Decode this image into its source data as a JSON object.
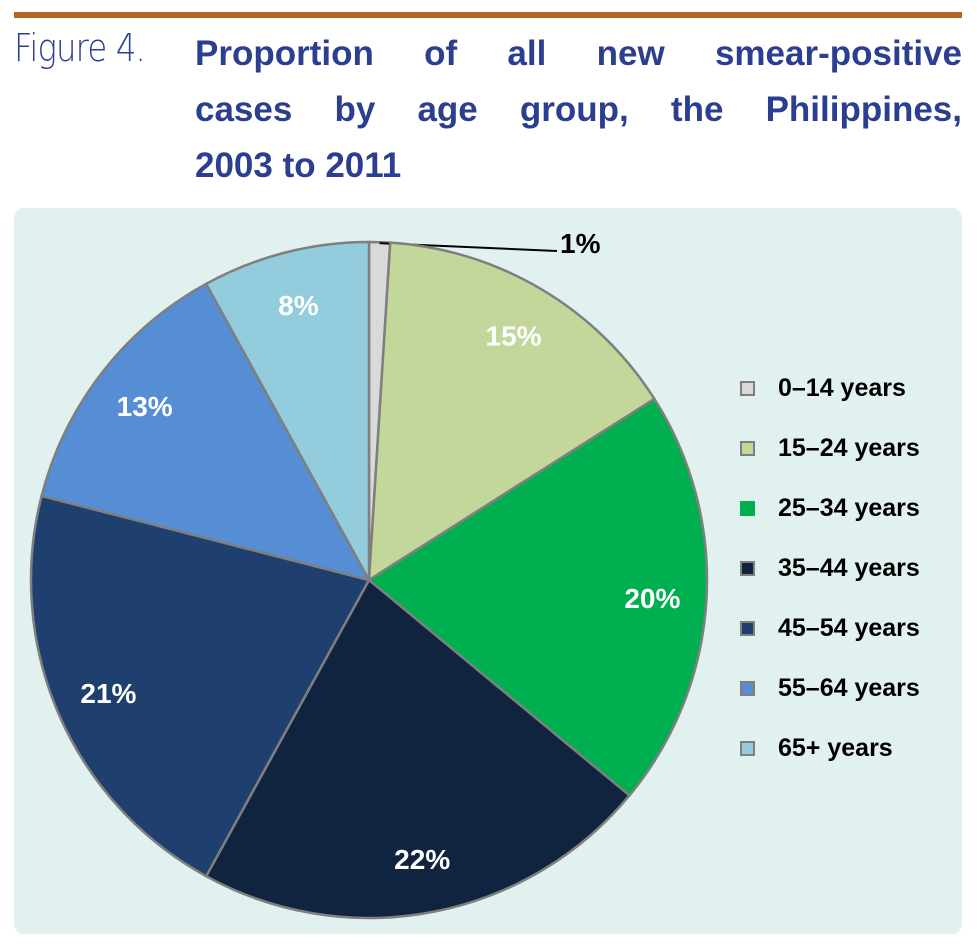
{
  "figure_label": "Figure 4.",
  "title_lines": [
    "Proportion of all new smear-positive",
    "cases by age group, the Philippines,",
    "2003 to 2011"
  ],
  "chart_data": {
    "type": "pie",
    "title": "Proportion of all new smear-positive cases by age group, the Philippines, 2003 to 2011",
    "start": "top",
    "direction": "clockwise",
    "legend_position": "right",
    "slices": [
      {
        "label": "0–14 years",
        "value": 1,
        "display": "1%",
        "color": "#d9d9d9",
        "label_color": "#000000"
      },
      {
        "label": "15–24 years",
        "value": 15,
        "display": "15%",
        "color": "#c4d79b",
        "label_color": "#ffffff"
      },
      {
        "label": "25–34 years",
        "value": 20,
        "display": "20%",
        "color": "#00b050",
        "label_color": "#ffffff"
      },
      {
        "label": "35–44 years",
        "value": 22,
        "display": "22%",
        "color": "#10243f",
        "label_color": "#ffffff"
      },
      {
        "label": "45–54 years",
        "value": 21,
        "display": "21%",
        "color": "#1f3f6e",
        "label_color": "#ffffff"
      },
      {
        "label": "55–64 years",
        "value": 13,
        "display": "13%",
        "color": "#558ed5",
        "label_color": "#ffffff"
      },
      {
        "label": "65+ years",
        "value": 8,
        "display": "8%",
        "color": "#93cddd",
        "label_color": "#ffffff"
      }
    ]
  },
  "colors": {
    "rule": "#b5651d",
    "title": "#2b3e8f",
    "panel": "#e1f1f0",
    "slice_border": "#7f7f7f"
  }
}
